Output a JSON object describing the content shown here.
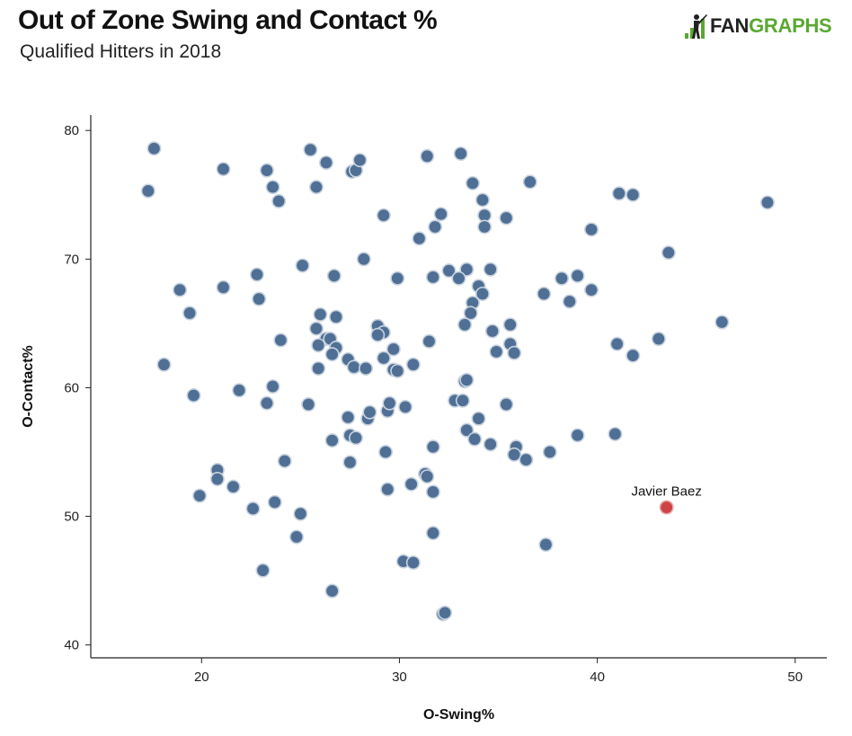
{
  "header": {
    "title": "Out of Zone Swing and Contact %",
    "subtitle": "Qualified Hitters in 2018"
  },
  "logo": {
    "part1": "FAN",
    "part2": "GRAPHS",
    "color_dark": "#222222",
    "color_green": "#5aa832"
  },
  "chart_data": {
    "type": "scatter",
    "title": "Out of Zone Swing and Contact %",
    "subtitle": "Qualified Hitters in 2018",
    "xlabel": "O-Swing%",
    "ylabel": "O-Contact%",
    "xlim": [
      14.4,
      51.6
    ],
    "ylim": [
      39,
      81.2
    ],
    "xticks": [
      20,
      30,
      40,
      50
    ],
    "yticks": [
      40,
      50,
      60,
      70,
      80
    ],
    "grid": false,
    "colors": {
      "point": "#4f6f95",
      "point_edge": "#c9d3de",
      "highlight": "#cc4444",
      "highlight_edge": "#e8aaaa"
    },
    "highlight": {
      "label": "Javier Baez",
      "x": 43.5,
      "y": 50.7
    },
    "points": [
      [
        17.6,
        78.6
      ],
      [
        17.3,
        75.3
      ],
      [
        21.1,
        77.0
      ],
      [
        23.3,
        76.9
      ],
      [
        23.6,
        75.6
      ],
      [
        23.9,
        74.5
      ],
      [
        25.5,
        78.5
      ],
      [
        26.3,
        77.5
      ],
      [
        25.8,
        75.6
      ],
      [
        27.6,
        76.8
      ],
      [
        27.8,
        76.9
      ],
      [
        28.0,
        77.7
      ],
      [
        31.4,
        78.0
      ],
      [
        33.1,
        78.2
      ],
      [
        33.7,
        75.9
      ],
      [
        34.2,
        74.6
      ],
      [
        36.6,
        76.0
      ],
      [
        41.1,
        75.1
      ],
      [
        41.8,
        75.0
      ],
      [
        48.6,
        74.4
      ],
      [
        29.2,
        73.4
      ],
      [
        32.1,
        73.5
      ],
      [
        31.8,
        72.5
      ],
      [
        34.3,
        73.4
      ],
      [
        35.4,
        73.2
      ],
      [
        34.3,
        72.5
      ],
      [
        39.7,
        72.3
      ],
      [
        31.0,
        71.6
      ],
      [
        43.6,
        70.5
      ],
      [
        25.1,
        69.5
      ],
      [
        28.2,
        70.0
      ],
      [
        22.8,
        68.8
      ],
      [
        26.7,
        68.7
      ],
      [
        29.9,
        68.5
      ],
      [
        31.7,
        68.6
      ],
      [
        32.5,
        69.1
      ],
      [
        33.4,
        69.2
      ],
      [
        34.6,
        69.2
      ],
      [
        33.0,
        68.5
      ],
      [
        18.9,
        67.6
      ],
      [
        21.1,
        67.8
      ],
      [
        22.9,
        66.9
      ],
      [
        34.0,
        67.9
      ],
      [
        34.2,
        67.3
      ],
      [
        33.7,
        66.6
      ],
      [
        37.3,
        67.3
      ],
      [
        38.2,
        68.5
      ],
      [
        39.0,
        68.7
      ],
      [
        39.7,
        67.6
      ],
      [
        38.6,
        66.7
      ],
      [
        19.4,
        65.8
      ],
      [
        26.0,
        65.7
      ],
      [
        26.8,
        65.5
      ],
      [
        33.6,
        65.8
      ],
      [
        25.8,
        64.6
      ],
      [
        28.9,
        64.8
      ],
      [
        29.2,
        64.3
      ],
      [
        33.3,
        64.9
      ],
      [
        34.7,
        64.4
      ],
      [
        35.6,
        64.9
      ],
      [
        46.3,
        65.1
      ],
      [
        24.0,
        63.7
      ],
      [
        26.3,
        63.8
      ],
      [
        26.5,
        63.8
      ],
      [
        25.9,
        63.3
      ],
      [
        26.8,
        63.1
      ],
      [
        26.6,
        62.6
      ],
      [
        28.9,
        64.1
      ],
      [
        29.7,
        63.0
      ],
      [
        31.5,
        63.6
      ],
      [
        35.6,
        63.4
      ],
      [
        34.9,
        62.8
      ],
      [
        35.8,
        62.7
      ],
      [
        41.0,
        63.4
      ],
      [
        43.1,
        63.8
      ],
      [
        18.1,
        61.8
      ],
      [
        25.9,
        61.5
      ],
      [
        27.4,
        62.2
      ],
      [
        27.7,
        61.6
      ],
      [
        28.3,
        61.5
      ],
      [
        29.2,
        62.3
      ],
      [
        29.7,
        61.4
      ],
      [
        29.9,
        61.3
      ],
      [
        30.7,
        61.8
      ],
      [
        41.8,
        62.5
      ],
      [
        19.6,
        59.4
      ],
      [
        21.9,
        59.8
      ],
      [
        23.6,
        60.1
      ],
      [
        23.3,
        58.8
      ],
      [
        25.4,
        58.7
      ],
      [
        29.4,
        58.2
      ],
      [
        29.5,
        58.8
      ],
      [
        30.3,
        58.5
      ],
      [
        32.8,
        59.0
      ],
      [
        33.2,
        59.0
      ],
      [
        33.3,
        60.5
      ],
      [
        33.4,
        60.6
      ],
      [
        35.4,
        58.7
      ],
      [
        27.4,
        57.7
      ],
      [
        28.4,
        57.6
      ],
      [
        28.5,
        58.1
      ],
      [
        34.0,
        57.6
      ],
      [
        27.5,
        56.3
      ],
      [
        27.8,
        56.1
      ],
      [
        26.6,
        55.9
      ],
      [
        33.4,
        56.7
      ],
      [
        33.8,
        56.0
      ],
      [
        31.7,
        55.4
      ],
      [
        34.6,
        55.6
      ],
      [
        35.9,
        55.4
      ],
      [
        35.8,
        54.8
      ],
      [
        36.4,
        54.4
      ],
      [
        37.6,
        55.0
      ],
      [
        39.0,
        56.3
      ],
      [
        40.9,
        56.4
      ],
      [
        29.3,
        55.0
      ],
      [
        27.5,
        54.2
      ],
      [
        24.2,
        54.3
      ],
      [
        20.8,
        53.6
      ],
      [
        20.8,
        52.9
      ],
      [
        21.6,
        52.3
      ],
      [
        31.3,
        53.3
      ],
      [
        31.4,
        53.1
      ],
      [
        30.6,
        52.5
      ],
      [
        29.4,
        52.1
      ],
      [
        31.7,
        51.9
      ],
      [
        19.9,
        51.6
      ],
      [
        23.7,
        51.1
      ],
      [
        22.6,
        50.6
      ],
      [
        25.0,
        50.2
      ],
      [
        24.8,
        48.4
      ],
      [
        31.7,
        48.7
      ],
      [
        37.4,
        47.8
      ],
      [
        23.1,
        45.8
      ],
      [
        30.2,
        46.5
      ],
      [
        30.7,
        46.4
      ],
      [
        26.6,
        44.2
      ],
      [
        32.2,
        42.4
      ],
      [
        32.3,
        42.5
      ]
    ]
  }
}
